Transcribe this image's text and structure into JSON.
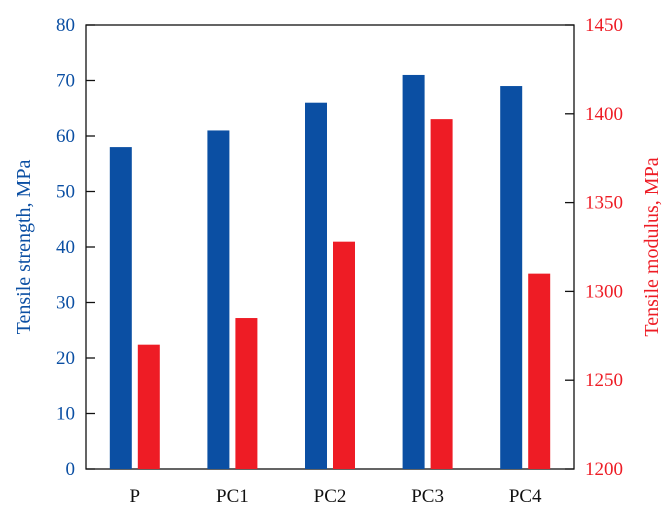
{
  "chart_data": {
    "type": "bar",
    "categories": [
      "P",
      "PC1",
      "PC2",
      "PC3",
      "PC4"
    ],
    "series": [
      {
        "name": "Tensile strength",
        "axis": "left",
        "color": "#0b4fa3",
        "values": [
          58,
          61,
          66,
          71,
          69
        ]
      },
      {
        "name": "Tensile modulus",
        "axis": "right",
        "color": "#ee1c25",
        "values": [
          1270,
          1285,
          1328,
          1397,
          1310
        ]
      }
    ],
    "ylabel": "Tensile strength, MPa",
    "y2label": "Tensile modulus, MPa",
    "ylim": [
      0,
      80
    ],
    "y2lim": [
      1200,
      1450
    ],
    "yticks": [
      0,
      10,
      20,
      30,
      40,
      50,
      60,
      70,
      80
    ],
    "y2ticks": [
      1200,
      1250,
      1300,
      1350,
      1400,
      1450
    ],
    "ylabel_color": "#0b4fa3",
    "y2label_color": "#ee1c25",
    "grid": false,
    "legend": "none"
  }
}
